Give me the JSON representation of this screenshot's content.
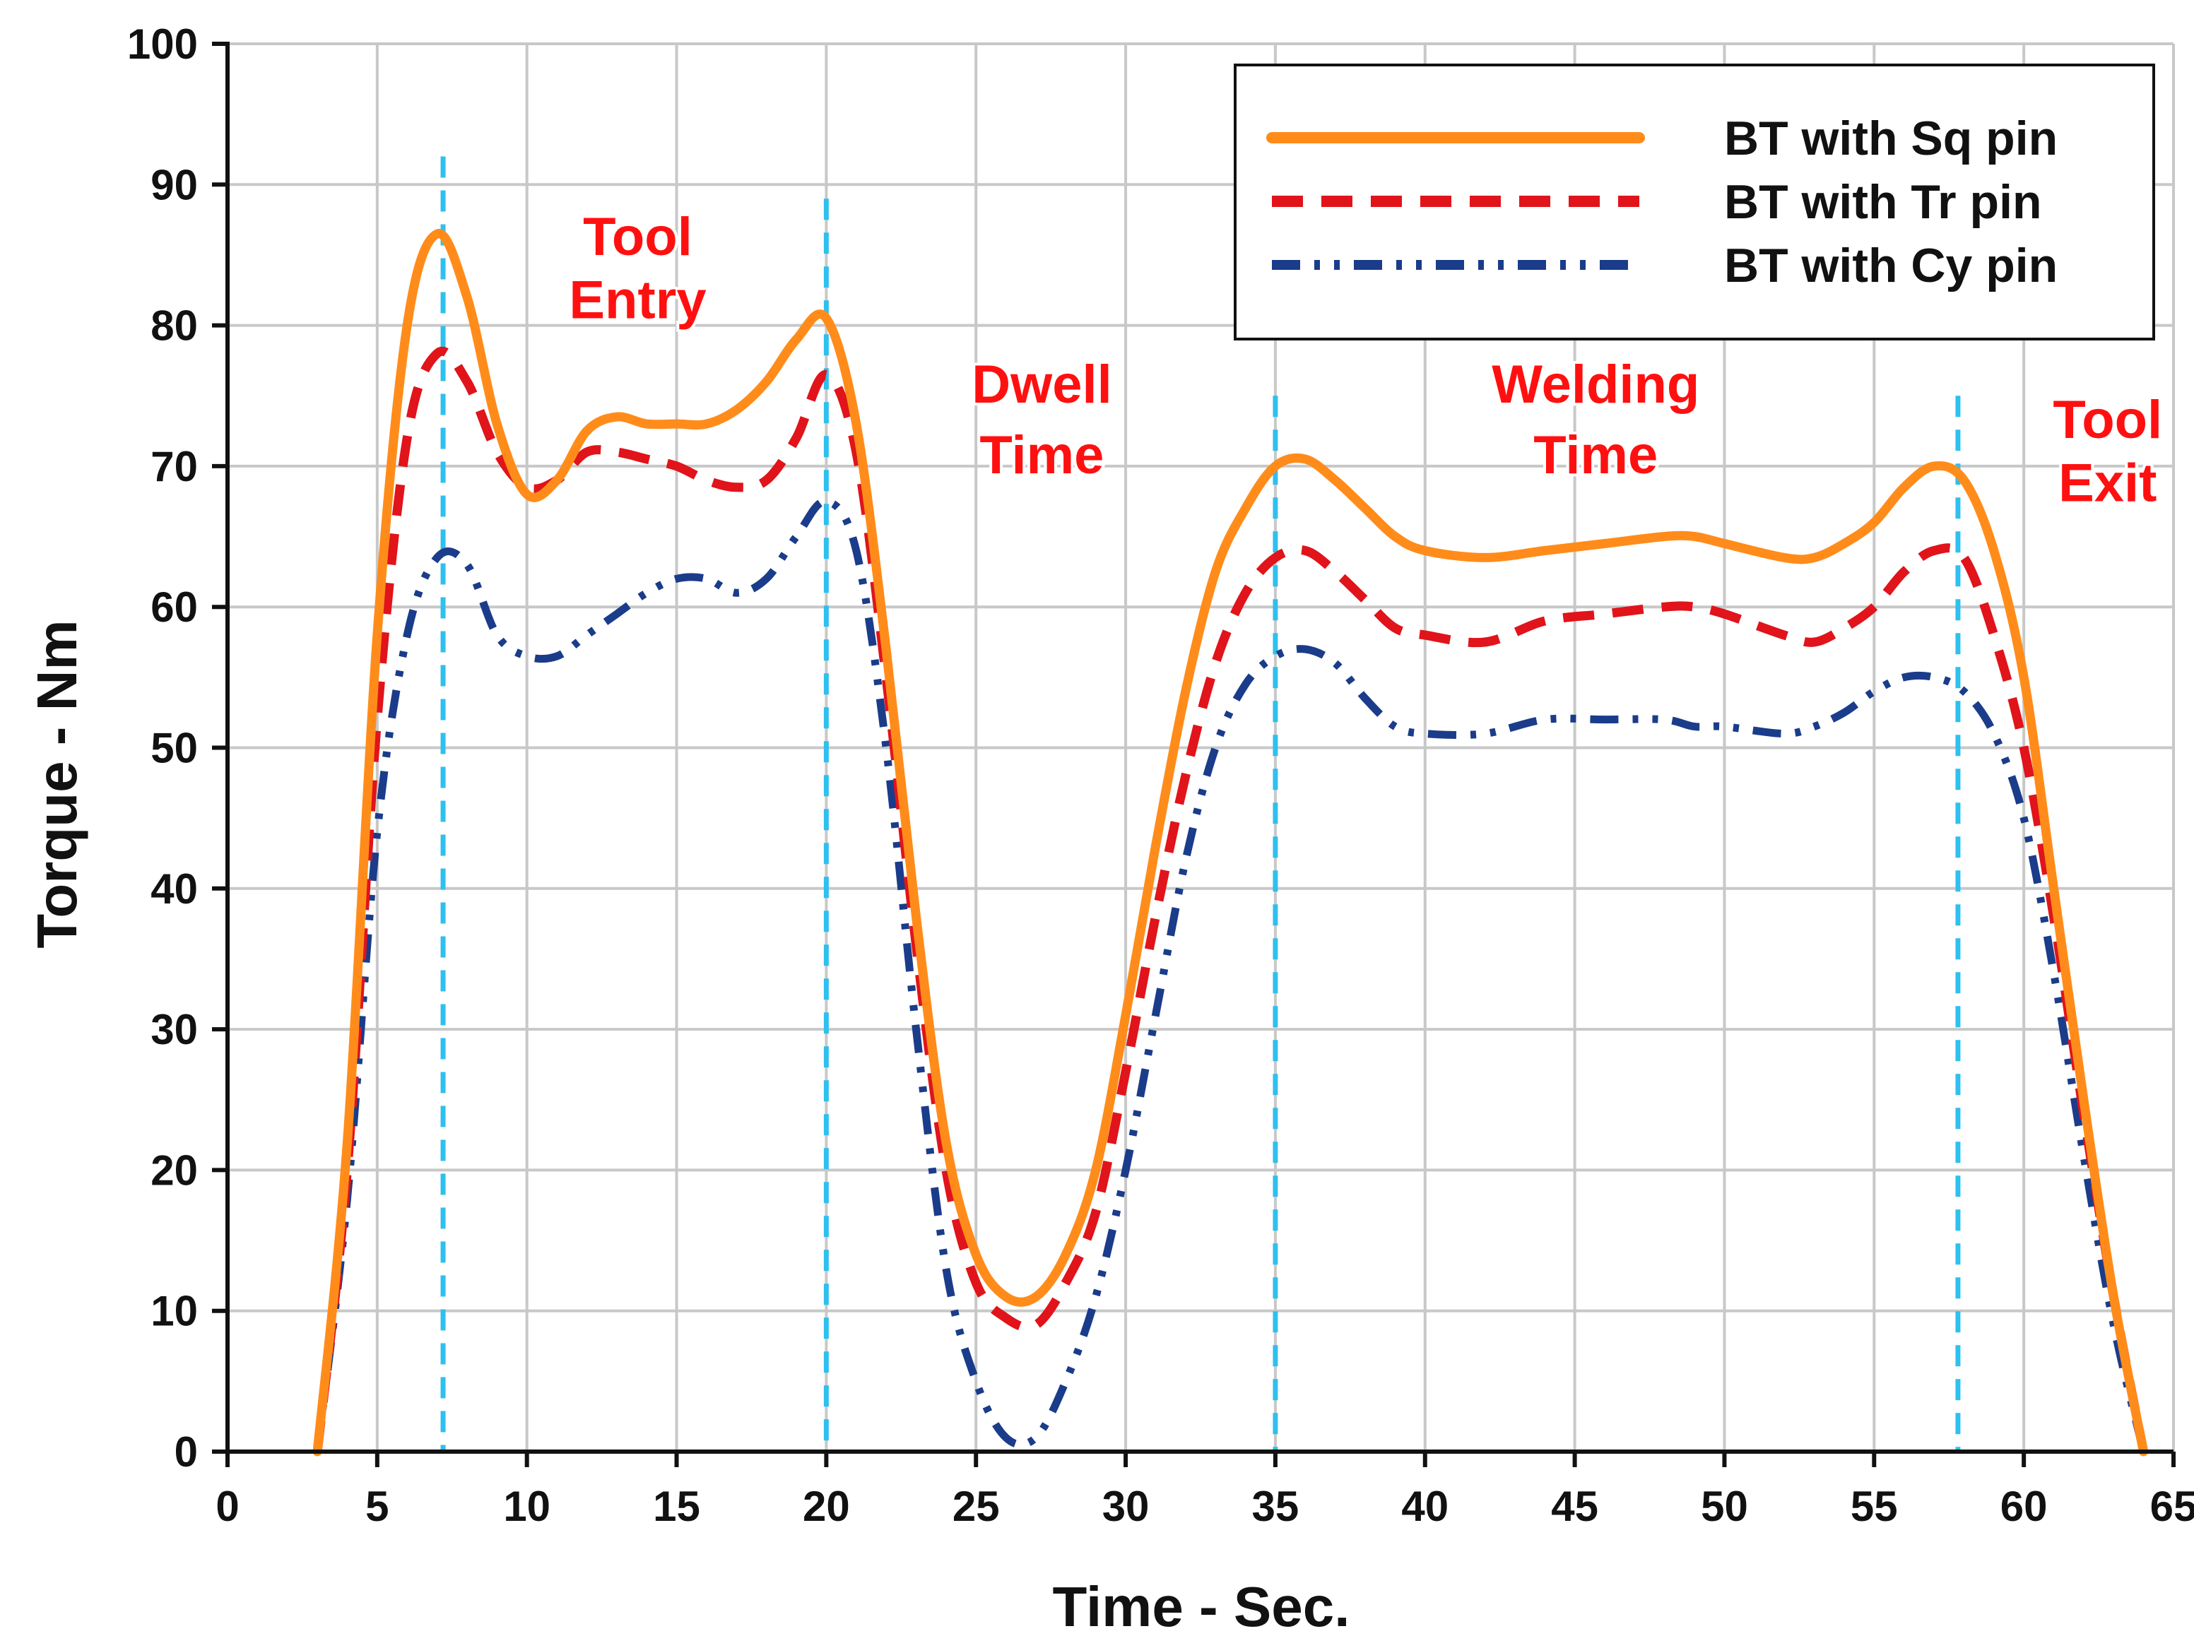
{
  "chart_data": {
    "type": "line",
    "title": "",
    "xlabel": "Time - Sec.",
    "ylabel": "Torque - Nm",
    "xlim": [
      0,
      65
    ],
    "ylim": [
      0,
      100
    ],
    "xticks": [
      0,
      5,
      10,
      15,
      20,
      25,
      30,
      35,
      40,
      45,
      50,
      55,
      60,
      65
    ],
    "yticks": [
      0,
      10,
      20,
      30,
      40,
      50,
      60,
      70,
      80,
      90,
      100
    ],
    "grid": true,
    "legend_position": "top-right",
    "series": [
      {
        "name": "BT with Sq pin",
        "color": "#ff8c1a",
        "dash": "solid",
        "x": [
          3,
          4,
          5,
          6,
          7,
          8,
          9,
          10,
          11,
          12,
          13,
          14,
          15,
          16,
          17,
          18,
          19,
          20,
          21,
          22,
          23,
          24,
          25,
          26,
          27,
          28,
          29,
          30,
          31,
          32,
          33,
          34,
          35,
          36,
          37,
          38,
          39,
          40,
          42,
          44,
          46,
          48,
          49,
          50,
          52,
          53,
          54,
          55,
          56,
          57,
          58,
          59,
          60,
          61,
          62,
          63,
          64
        ],
        "values": [
          0,
          22,
          58,
          80,
          86.5,
          82,
          73,
          68,
          69,
          72.5,
          73.5,
          73,
          73,
          73,
          74,
          76,
          79,
          80.5,
          73,
          57,
          38,
          22,
          14,
          11,
          11,
          14,
          20,
          31,
          43,
          54,
          62.5,
          67,
          70,
          70.5,
          69,
          67,
          65,
          64,
          63.5,
          64,
          64.5,
          65,
          65,
          64.5,
          63.5,
          63.5,
          64.5,
          66,
          68.5,
          70,
          69,
          64,
          55,
          40,
          25,
          11,
          0
        ]
      },
      {
        "name": "BT with Tr pin",
        "color": "#e0141a",
        "dash": "dash",
        "x": [
          3,
          4,
          5,
          6,
          7,
          8,
          9,
          10,
          11,
          12,
          13,
          14,
          15,
          16,
          17,
          18,
          19,
          20,
          21,
          22,
          23,
          24,
          25,
          26,
          27,
          28,
          29,
          30,
          31,
          32,
          33,
          34,
          35,
          36,
          37,
          38,
          39,
          40,
          42,
          44,
          46,
          48,
          49,
          50,
          52,
          53,
          54,
          55,
          56,
          57,
          58,
          59,
          60,
          61,
          62,
          63,
          64
        ],
        "values": [
          0,
          20,
          52,
          72,
          78,
          76,
          71,
          68.5,
          69,
          71,
          71,
          70.5,
          70,
          69,
          68.5,
          69,
          72,
          76.5,
          71,
          55,
          36,
          20,
          12,
          9.5,
          9,
          12,
          17,
          27,
          38,
          48,
          56,
          61,
          63.5,
          64,
          62.5,
          60.5,
          58.5,
          58,
          57.5,
          59,
          59.5,
          60,
          60,
          59.5,
          58,
          57.5,
          58.5,
          60,
          62.5,
          64,
          63.5,
          58,
          50,
          38,
          24,
          11,
          0
        ]
      },
      {
        "name": "BT with Cy pin",
        "color": "#1a3c8a",
        "dash": "dashdotdot",
        "x": [
          3,
          4,
          5,
          6,
          7,
          8,
          9,
          10,
          11,
          12,
          13,
          14,
          15,
          16,
          17,
          18,
          19,
          20,
          21,
          22,
          23,
          24,
          25,
          26,
          27,
          28,
          29,
          30,
          31,
          32,
          33,
          34,
          35,
          36,
          37,
          38,
          39,
          40,
          42,
          44,
          46,
          48,
          49,
          50,
          52,
          53,
          54,
          55,
          56,
          57,
          58,
          59,
          60,
          61,
          62,
          63,
          64
        ],
        "values": [
          0,
          18,
          44,
          58,
          63.5,
          63,
          58,
          56.5,
          56.5,
          58,
          59.5,
          61,
          62,
          62,
          61,
          62,
          65,
          67.5,
          64,
          50,
          30,
          13,
          5,
          1,
          1,
          5,
          11,
          20,
          31,
          42,
          50,
          54.5,
          56.5,
          57,
          56,
          53.5,
          51.5,
          51,
          51,
          52,
          52,
          52,
          51.5,
          51.5,
          51,
          51.5,
          52.5,
          54,
          55,
          55,
          54,
          51,
          45,
          34,
          21,
          9,
          0
        ]
      }
    ],
    "vertical_markers": [
      7.2,
      20,
      35,
      57.8
    ],
    "annotations": [
      {
        "lines": [
          "Tool",
          "Entry"
        ],
        "x": 13.7,
        "y": [
          85,
          80.5
        ]
      },
      {
        "lines": [
          "Dwell",
          "Time"
        ],
        "x": 27.2,
        "y": [
          74.5,
          69.5
        ]
      },
      {
        "lines": [
          "Welding",
          "Time"
        ],
        "x": 45.7,
        "y": [
          74.5,
          69.5
        ]
      },
      {
        "lines": [
          "Tool",
          "Exit"
        ],
        "x": 62.8,
        "y": [
          72,
          67.5
        ]
      }
    ]
  }
}
